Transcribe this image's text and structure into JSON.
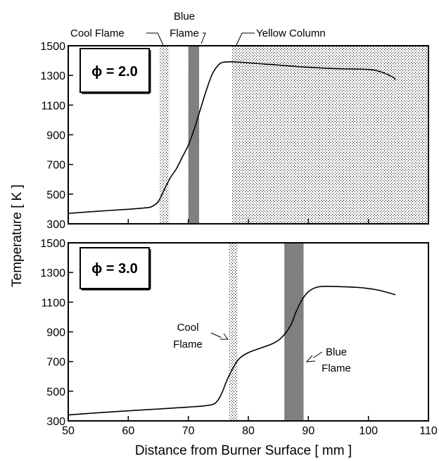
{
  "chart_data": [
    {
      "type": "line",
      "panel": "top",
      "annotation_box": "ϕ = 2.0",
      "xlim": [
        50,
        110
      ],
      "ylim": [
        300,
        1500
      ],
      "x_ticks": [
        50,
        60,
        70,
        80,
        90,
        100,
        110
      ],
      "y_ticks": [
        300,
        500,
        700,
        900,
        1100,
        1300,
        1500
      ],
      "y_tick_labels": [
        "300",
        "500",
        "700",
        "900",
        "1100",
        "1300",
        "1500"
      ],
      "grid": false,
      "series": [
        {
          "x": [
            50,
            55,
            60,
            63,
            64,
            65,
            66,
            67,
            68,
            69,
            70,
            71,
            72,
            73,
            74,
            75,
            75.5,
            76,
            77,
            78,
            80,
            85,
            90,
            95,
            100,
            102,
            104,
            104.5
          ],
          "y": [
            370,
            385,
            398,
            408,
            418,
            450,
            530,
            610,
            670,
            750,
            830,
            940,
            1070,
            1200,
            1310,
            1370,
            1385,
            1390,
            1392,
            1390,
            1385,
            1370,
            1355,
            1345,
            1340,
            1325,
            1290,
            1270
          ]
        }
      ],
      "shaded_regions": [
        {
          "label": "Cool Flame",
          "x0": 65.2,
          "x1": 66.8,
          "shade": "light"
        },
        {
          "label": "Blue Flame",
          "x0": 70.0,
          "x1": 71.8,
          "shade": "dark"
        },
        {
          "label": "Yellow Column",
          "x0": 77.3,
          "x1": 110,
          "shade": "light"
        }
      ],
      "top_labels": {
        "cool": "Cool Flame",
        "blue_1": "Blue",
        "blue_2": "Flame",
        "yellow": "Yellow Column"
      }
    },
    {
      "type": "line",
      "panel": "bottom",
      "annotation_box": "ϕ = 3.0",
      "xlim": [
        50,
        110
      ],
      "ylim": [
        300,
        1500
      ],
      "x_ticks": [
        50,
        60,
        70,
        80,
        90,
        100,
        110
      ],
      "x_tick_labels": [
        "50",
        "60",
        "70",
        "80",
        "90",
        "100",
        "110"
      ],
      "y_ticks": [
        300,
        500,
        700,
        900,
        1100,
        1300,
        1500
      ],
      "y_tick_labels": [
        "300",
        "500",
        "700",
        "900",
        "1100",
        "1300",
        "1500"
      ],
      "grid": false,
      "series": [
        {
          "x": [
            50,
            55,
            60,
            65,
            70,
            73,
            74.5,
            75.5,
            76.5,
            77.5,
            78.5,
            80,
            82,
            84,
            85.5,
            87,
            88,
            89,
            90,
            91,
            92,
            93,
            95,
            98,
            100,
            102,
            104.5
          ],
          "y": [
            340,
            355,
            368,
            380,
            393,
            403,
            420,
            480,
            580,
            660,
            720,
            760,
            790,
            820,
            860,
            940,
            1040,
            1120,
            1170,
            1195,
            1205,
            1207,
            1205,
            1200,
            1192,
            1178,
            1150
          ]
        }
      ],
      "shaded_regions": [
        {
          "label": "Cool Flame",
          "x0": 76.8,
          "x1": 78.2,
          "shade": "light"
        },
        {
          "label": "Blue Flame",
          "x0": 86.0,
          "x1": 89.2,
          "shade": "dark"
        }
      ],
      "inner_labels": {
        "cool_1": "Cool",
        "cool_2": "Flame",
        "blue_1": "Blue",
        "blue_2": "Flame"
      }
    }
  ],
  "ylabel": "Temperature   [ K ]",
  "xlabel": "Distance from Burner Surface   [ mm ]"
}
